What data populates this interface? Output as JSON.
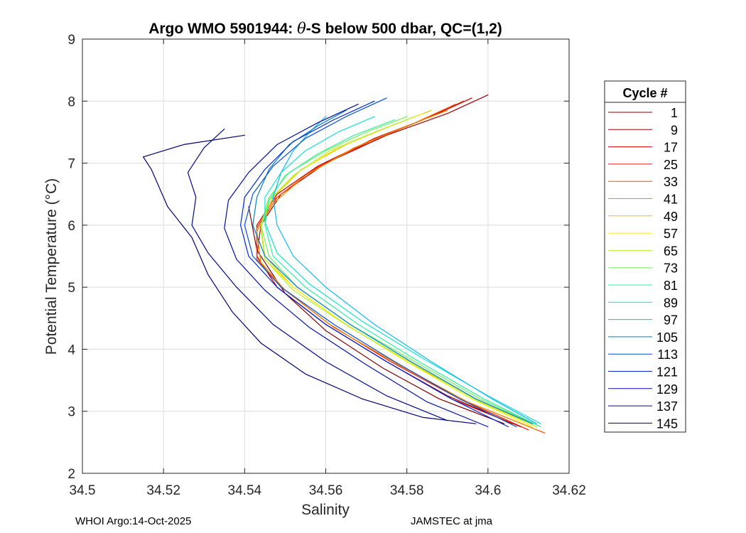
{
  "chart_data": {
    "type": "line",
    "title": "Argo WMO 5901944: θ-S below 500 dbar,  QC=(1,2)",
    "title_parts": {
      "prefix": "Argo WMO 5901944: ",
      "theta": "θ",
      "suffix": "-S below 500 dbar,  QC=(1,2)"
    },
    "xlabel": "Salinity",
    "ylabel": "Potential Temperature (°C)",
    "xlim": [
      34.5,
      34.62
    ],
    "ylim": [
      2,
      9
    ],
    "xticks": [
      34.5,
      34.52,
      34.54,
      34.56,
      34.58,
      34.6,
      34.62
    ],
    "xtick_labels": [
      "34.5",
      "34.52",
      "34.54",
      "34.56",
      "34.58",
      "34.6",
      "34.62"
    ],
    "yticks": [
      2,
      3,
      4,
      5,
      6,
      7,
      8,
      9
    ],
    "ytick_labels": [
      "2",
      "3",
      "4",
      "5",
      "6",
      "7",
      "8",
      "9"
    ],
    "grid": true,
    "legend_title": "Cycle #",
    "legend_position": "right",
    "legend": [
      {
        "label": "1",
        "color": "#800000"
      },
      {
        "label": "9",
        "color": "#a00000"
      },
      {
        "label": "17",
        "color": "#c80000"
      },
      {
        "label": "25",
        "color": "#e41a00"
      },
      {
        "label": "33",
        "color": "#f55000"
      },
      {
        "label": "41",
        "color": "#f08a00"
      },
      {
        "label": "49",
        "color": "#e8c000"
      },
      {
        "label": "57",
        "color": "#f0f000"
      },
      {
        "label": "65",
        "color": "#b8f030"
      },
      {
        "label": "73",
        "color": "#70f060"
      },
      {
        "label": "81",
        "color": "#30f0a0"
      },
      {
        "label": "89",
        "color": "#10e0d0"
      },
      {
        "label": "97",
        "color": "#10b8f0"
      },
      {
        "label": "105",
        "color": "#0080c8"
      },
      {
        "label": "113",
        "color": "#0050e0"
      },
      {
        "label": "121",
        "color": "#0028d0"
      },
      {
        "label": "129",
        "color": "#0010a0"
      },
      {
        "label": "137",
        "color": "#000888"
      },
      {
        "label": "145",
        "color": "#000070"
      }
    ],
    "series": [
      {
        "name": "1",
        "color": "#800000",
        "x": [
          34.541,
          34.543,
          34.55,
          34.56,
          34.574,
          34.588,
          34.604
        ],
        "y": [
          6.3,
          5.6,
          4.9,
          4.3,
          3.7,
          3.2,
          2.8
        ]
      },
      {
        "name": "9",
        "color": "#a00000",
        "x": [
          34.6,
          34.59,
          34.575,
          34.56,
          34.549,
          34.544,
          34.543,
          34.548,
          34.56,
          34.575,
          34.59,
          34.606
        ],
        "y": [
          8.1,
          7.8,
          7.45,
          7.0,
          6.5,
          6.0,
          5.5,
          5.0,
          4.4,
          3.8,
          3.25,
          2.8
        ]
      },
      {
        "name": "17",
        "color": "#c80000",
        "x": [
          34.596,
          34.586,
          34.572,
          34.558,
          34.548,
          34.543,
          34.543,
          34.548,
          34.56,
          34.575,
          34.591,
          34.608
        ],
        "y": [
          8.05,
          7.75,
          7.4,
          6.95,
          6.5,
          6.0,
          5.5,
          5.0,
          4.4,
          3.8,
          3.2,
          2.75
        ]
      },
      {
        "name": "25",
        "color": "#e41a00",
        "x": [
          34.594,
          34.584,
          34.571,
          34.557,
          34.548,
          34.543,
          34.543,
          34.549,
          34.561,
          34.576,
          34.593,
          34.61
        ],
        "y": [
          8.0,
          7.7,
          7.35,
          6.9,
          6.45,
          5.95,
          5.45,
          5.0,
          4.4,
          3.8,
          3.2,
          2.7
        ]
      },
      {
        "name": "33",
        "color": "#f55000",
        "x": [
          34.592,
          34.582,
          34.569,
          34.556,
          34.547,
          34.543,
          34.543,
          34.549,
          34.562,
          34.578,
          34.595,
          34.614
        ],
        "y": [
          7.95,
          7.65,
          7.3,
          6.85,
          6.4,
          5.95,
          5.45,
          5.0,
          4.35,
          3.75,
          3.15,
          2.65
        ]
      },
      {
        "name": "41",
        "color": "#f08a00",
        "x": [
          34.59,
          34.58,
          34.567,
          34.555,
          34.547,
          34.543,
          34.544,
          34.55,
          34.562,
          34.578,
          34.595,
          34.612
        ],
        "y": [
          7.85,
          7.6,
          7.25,
          6.8,
          6.35,
          5.9,
          5.4,
          4.95,
          4.35,
          3.75,
          3.15,
          2.7
        ]
      },
      {
        "name": "49",
        "color": "#e8c000",
        "x": [
          34.586,
          34.576,
          34.565,
          34.554,
          34.547,
          34.544,
          34.545,
          34.552,
          34.565,
          34.58,
          34.597,
          34.612
        ],
        "y": [
          7.85,
          7.6,
          7.3,
          6.9,
          6.45,
          6.0,
          5.5,
          5.0,
          4.4,
          3.8,
          3.2,
          2.75
        ]
      },
      {
        "name": "57",
        "color": "#f0f000",
        "x": [
          34.584,
          34.574,
          34.563,
          34.553,
          34.546,
          34.544,
          34.545,
          34.552,
          34.565,
          34.58,
          34.596,
          34.611
        ],
        "y": [
          7.8,
          7.55,
          7.25,
          6.85,
          6.4,
          5.95,
          5.45,
          5.0,
          4.4,
          3.8,
          3.2,
          2.75
        ]
      },
      {
        "name": "65",
        "color": "#b8f030",
        "x": [
          34.582,
          34.572,
          34.561,
          34.552,
          34.546,
          34.544,
          34.545,
          34.552,
          34.566,
          34.582,
          34.598,
          34.612
        ],
        "y": [
          7.75,
          7.5,
          7.2,
          6.8,
          6.4,
          5.95,
          5.45,
          4.95,
          4.35,
          3.75,
          3.15,
          2.75
        ]
      },
      {
        "name": "73",
        "color": "#70f060",
        "x": [
          34.58,
          34.57,
          34.56,
          34.551,
          34.546,
          34.544,
          34.546,
          34.553,
          34.566,
          34.582,
          34.598,
          34.613
        ],
        "y": [
          7.75,
          7.5,
          7.2,
          6.85,
          6.45,
          6.0,
          5.5,
          5.0,
          4.4,
          3.8,
          3.2,
          2.75
        ]
      },
      {
        "name": "81",
        "color": "#30f0a0",
        "x": [
          34.577,
          34.567,
          34.558,
          34.55,
          34.546,
          34.545,
          34.547,
          34.555,
          34.568,
          34.583,
          34.599,
          34.613
        ],
        "y": [
          7.7,
          7.45,
          7.15,
          6.8,
          6.4,
          6.0,
          5.5,
          5.0,
          4.4,
          3.8,
          3.2,
          2.75
        ]
      },
      {
        "name": "89",
        "color": "#10e0d0",
        "x": [
          34.572,
          34.563,
          34.555,
          34.549,
          34.545,
          34.545,
          34.548,
          34.556,
          34.569,
          34.584,
          34.6,
          34.613
        ],
        "y": [
          7.75,
          7.5,
          7.2,
          6.85,
          6.45,
          6.05,
          5.55,
          5.05,
          4.45,
          3.85,
          3.25,
          2.8
        ]
      },
      {
        "name": "97",
        "color": "#10b8f0",
        "x": [
          34.56,
          34.556,
          34.552,
          34.549,
          34.547,
          34.548,
          34.552,
          34.56,
          34.572,
          34.586,
          34.601,
          34.612
        ],
        "y": [
          7.75,
          7.5,
          7.2,
          6.85,
          6.45,
          6.0,
          5.5,
          5.0,
          4.4,
          3.8,
          3.2,
          2.8
        ]
      },
      {
        "name": "105",
        "color": "#0080c8",
        "x": [
          34.565,
          34.558,
          34.551,
          34.546,
          34.543,
          34.542,
          34.545,
          34.553,
          34.566,
          34.581,
          34.597,
          34.611
        ],
        "y": [
          7.85,
          7.6,
          7.3,
          6.9,
          6.45,
          6.0,
          5.5,
          5.0,
          4.4,
          3.8,
          3.2,
          2.8
        ]
      },
      {
        "name": "113",
        "color": "#0050e0",
        "x": [
          34.575,
          34.565,
          34.555,
          34.547,
          34.542,
          34.54,
          34.542,
          34.549,
          34.562,
          34.577,
          34.593,
          34.607
        ],
        "y": [
          8.05,
          7.75,
          7.4,
          6.95,
          6.5,
          6.0,
          5.5,
          5.0,
          4.4,
          3.8,
          3.2,
          2.75
        ]
      },
      {
        "name": "121",
        "color": "#0028d0",
        "x": [
          34.572,
          34.562,
          34.552,
          34.545,
          34.54,
          34.539,
          34.541,
          34.548,
          34.56,
          34.575,
          34.591,
          34.605
        ],
        "y": [
          8.0,
          7.7,
          7.35,
          6.9,
          6.45,
          6.0,
          5.5,
          5.0,
          4.4,
          3.8,
          3.2,
          2.75
        ]
      },
      {
        "name": "129",
        "color": "#0010a0",
        "x": [
          34.568,
          34.558,
          34.548,
          34.541,
          34.536,
          34.535,
          34.538,
          34.545,
          34.556,
          34.57,
          34.585,
          34.6
        ],
        "y": [
          7.95,
          7.65,
          7.3,
          6.85,
          6.4,
          5.95,
          5.45,
          4.95,
          4.35,
          3.75,
          3.15,
          2.75
        ]
      },
      {
        "name": "137",
        "color": "#000888",
        "x": [
          34.535,
          34.53,
          34.526,
          34.528,
          34.527,
          34.531,
          34.538,
          34.547,
          34.56,
          34.575,
          34.59
        ],
        "y": [
          7.55,
          7.25,
          6.85,
          6.45,
          6.0,
          5.55,
          5.0,
          4.4,
          3.8,
          3.25,
          2.85
        ]
      },
      {
        "name": "145",
        "color": "#000070",
        "x": [
          34.54,
          34.525,
          34.515,
          34.517,
          34.521,
          34.527,
          34.531,
          34.537,
          34.544,
          34.555,
          34.569,
          34.584,
          34.597
        ],
        "y": [
          7.45,
          7.3,
          7.1,
          6.9,
          6.3,
          5.8,
          5.2,
          4.6,
          4.1,
          3.6,
          3.2,
          2.9,
          2.8
        ]
      }
    ]
  },
  "footer": {
    "left": "WHOI Argo:14-Oct-2025",
    "right": "JAMSTEC at jma"
  }
}
